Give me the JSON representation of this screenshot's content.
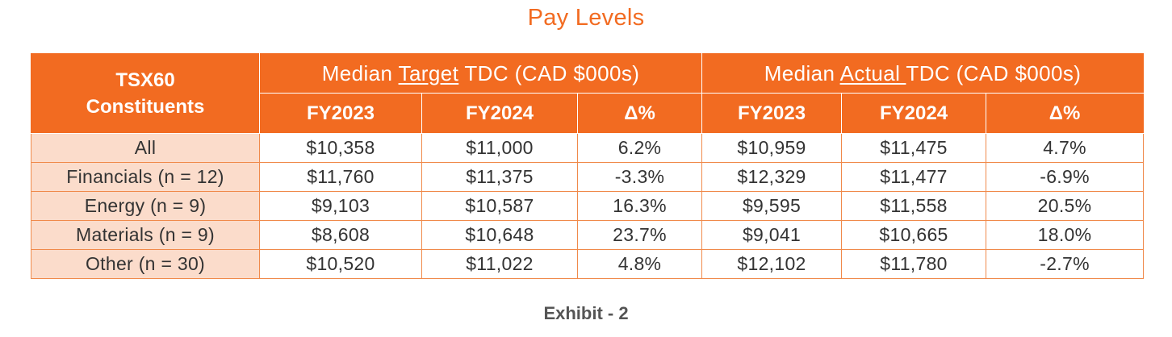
{
  "title": "Pay Levels",
  "header": {
    "corner_label_line1": "TSX60",
    "corner_label_line2": "Constituents",
    "target_group": {
      "prefix": "Median ",
      "underlined": "Target",
      "suffix": " TDC (CAD $000s)"
    },
    "actual_group": {
      "prefix": "Median ",
      "underlined": "Actual ",
      "suffix": "TDC (CAD $000s)"
    },
    "subcolumns": [
      "FY2023",
      "FY2024",
      "Δ%",
      "FY2023",
      "FY2024",
      "Δ%"
    ]
  },
  "rows": [
    {
      "category": "All",
      "cells": [
        "$10,358",
        "$11,000",
        "6.2%",
        "$10,959",
        "$11,475",
        "4.7%"
      ]
    },
    {
      "category": "Financials (n = 12)",
      "cells": [
        "$11,760",
        "$11,375",
        "-3.3%",
        "$12,329",
        "$11,477",
        "-6.9%"
      ]
    },
    {
      "category": "Energy (n = 9)",
      "cells": [
        "$9,103",
        "$10,587",
        "16.3%",
        "$9,595",
        "$11,558",
        "20.5%"
      ]
    },
    {
      "category": "Materials (n = 9)",
      "cells": [
        "$8,608",
        "$10,648",
        "23.7%",
        "$9,041",
        "$10,665",
        "18.0%"
      ]
    },
    {
      "category": "Other (n = 30)",
      "cells": [
        "$10,520",
        "$11,022",
        "4.8%",
        "$12,102",
        "$11,780",
        "-2.7%"
      ]
    }
  ],
  "caption": "Exhibit - 2",
  "colors": {
    "accent": "#f26b21",
    "category_fill": "#fbdccb"
  }
}
